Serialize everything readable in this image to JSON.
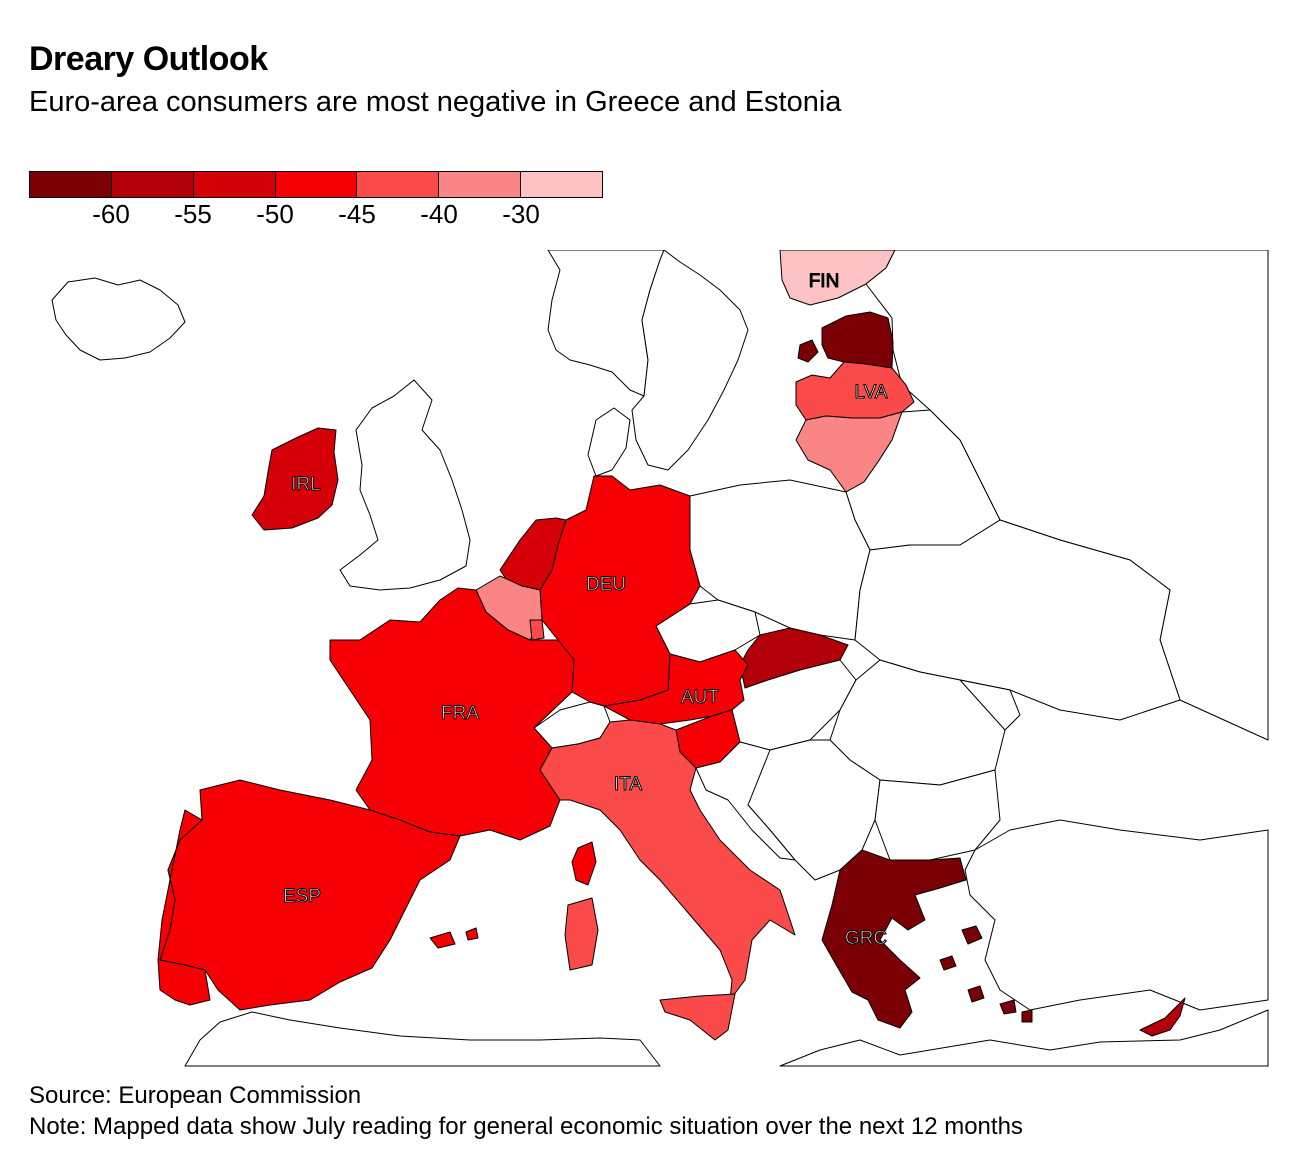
{
  "title": "Dreary Outlook",
  "subtitle": "Euro-area consumers are most negative in Greece and Estonia",
  "legend": {
    "colors": [
      "#7a0006",
      "#b30008",
      "#d60008",
      "#f70005",
      "#fa4a4a",
      "#fa8585",
      "#fdc3c4"
    ],
    "ticks": [
      "-60",
      "-55",
      "-50",
      "-45",
      "-40",
      "-30"
    ]
  },
  "map": {
    "labels": {
      "FIN": "FIN",
      "LVA": "LVA",
      "IRL": "IRL",
      "DEU": "DEU",
      "FRA": "FRA",
      "AUT": "AUT",
      "ITA": "ITA",
      "ESP": "ESP",
      "GRC": "GRC"
    },
    "colors": {
      "darkest": "#7a0006",
      "dark": "#b30008",
      "medium": "#d60008",
      "red": "#f70005",
      "light": "#fa4a4a",
      "lighter": "#fa8585",
      "lightest": "#fdc3c4",
      "none": "#ffffff"
    }
  },
  "source": "Source: European Commission",
  "note": "Note: Mapped data show July reading for general economic situation over the next 12 months"
}
